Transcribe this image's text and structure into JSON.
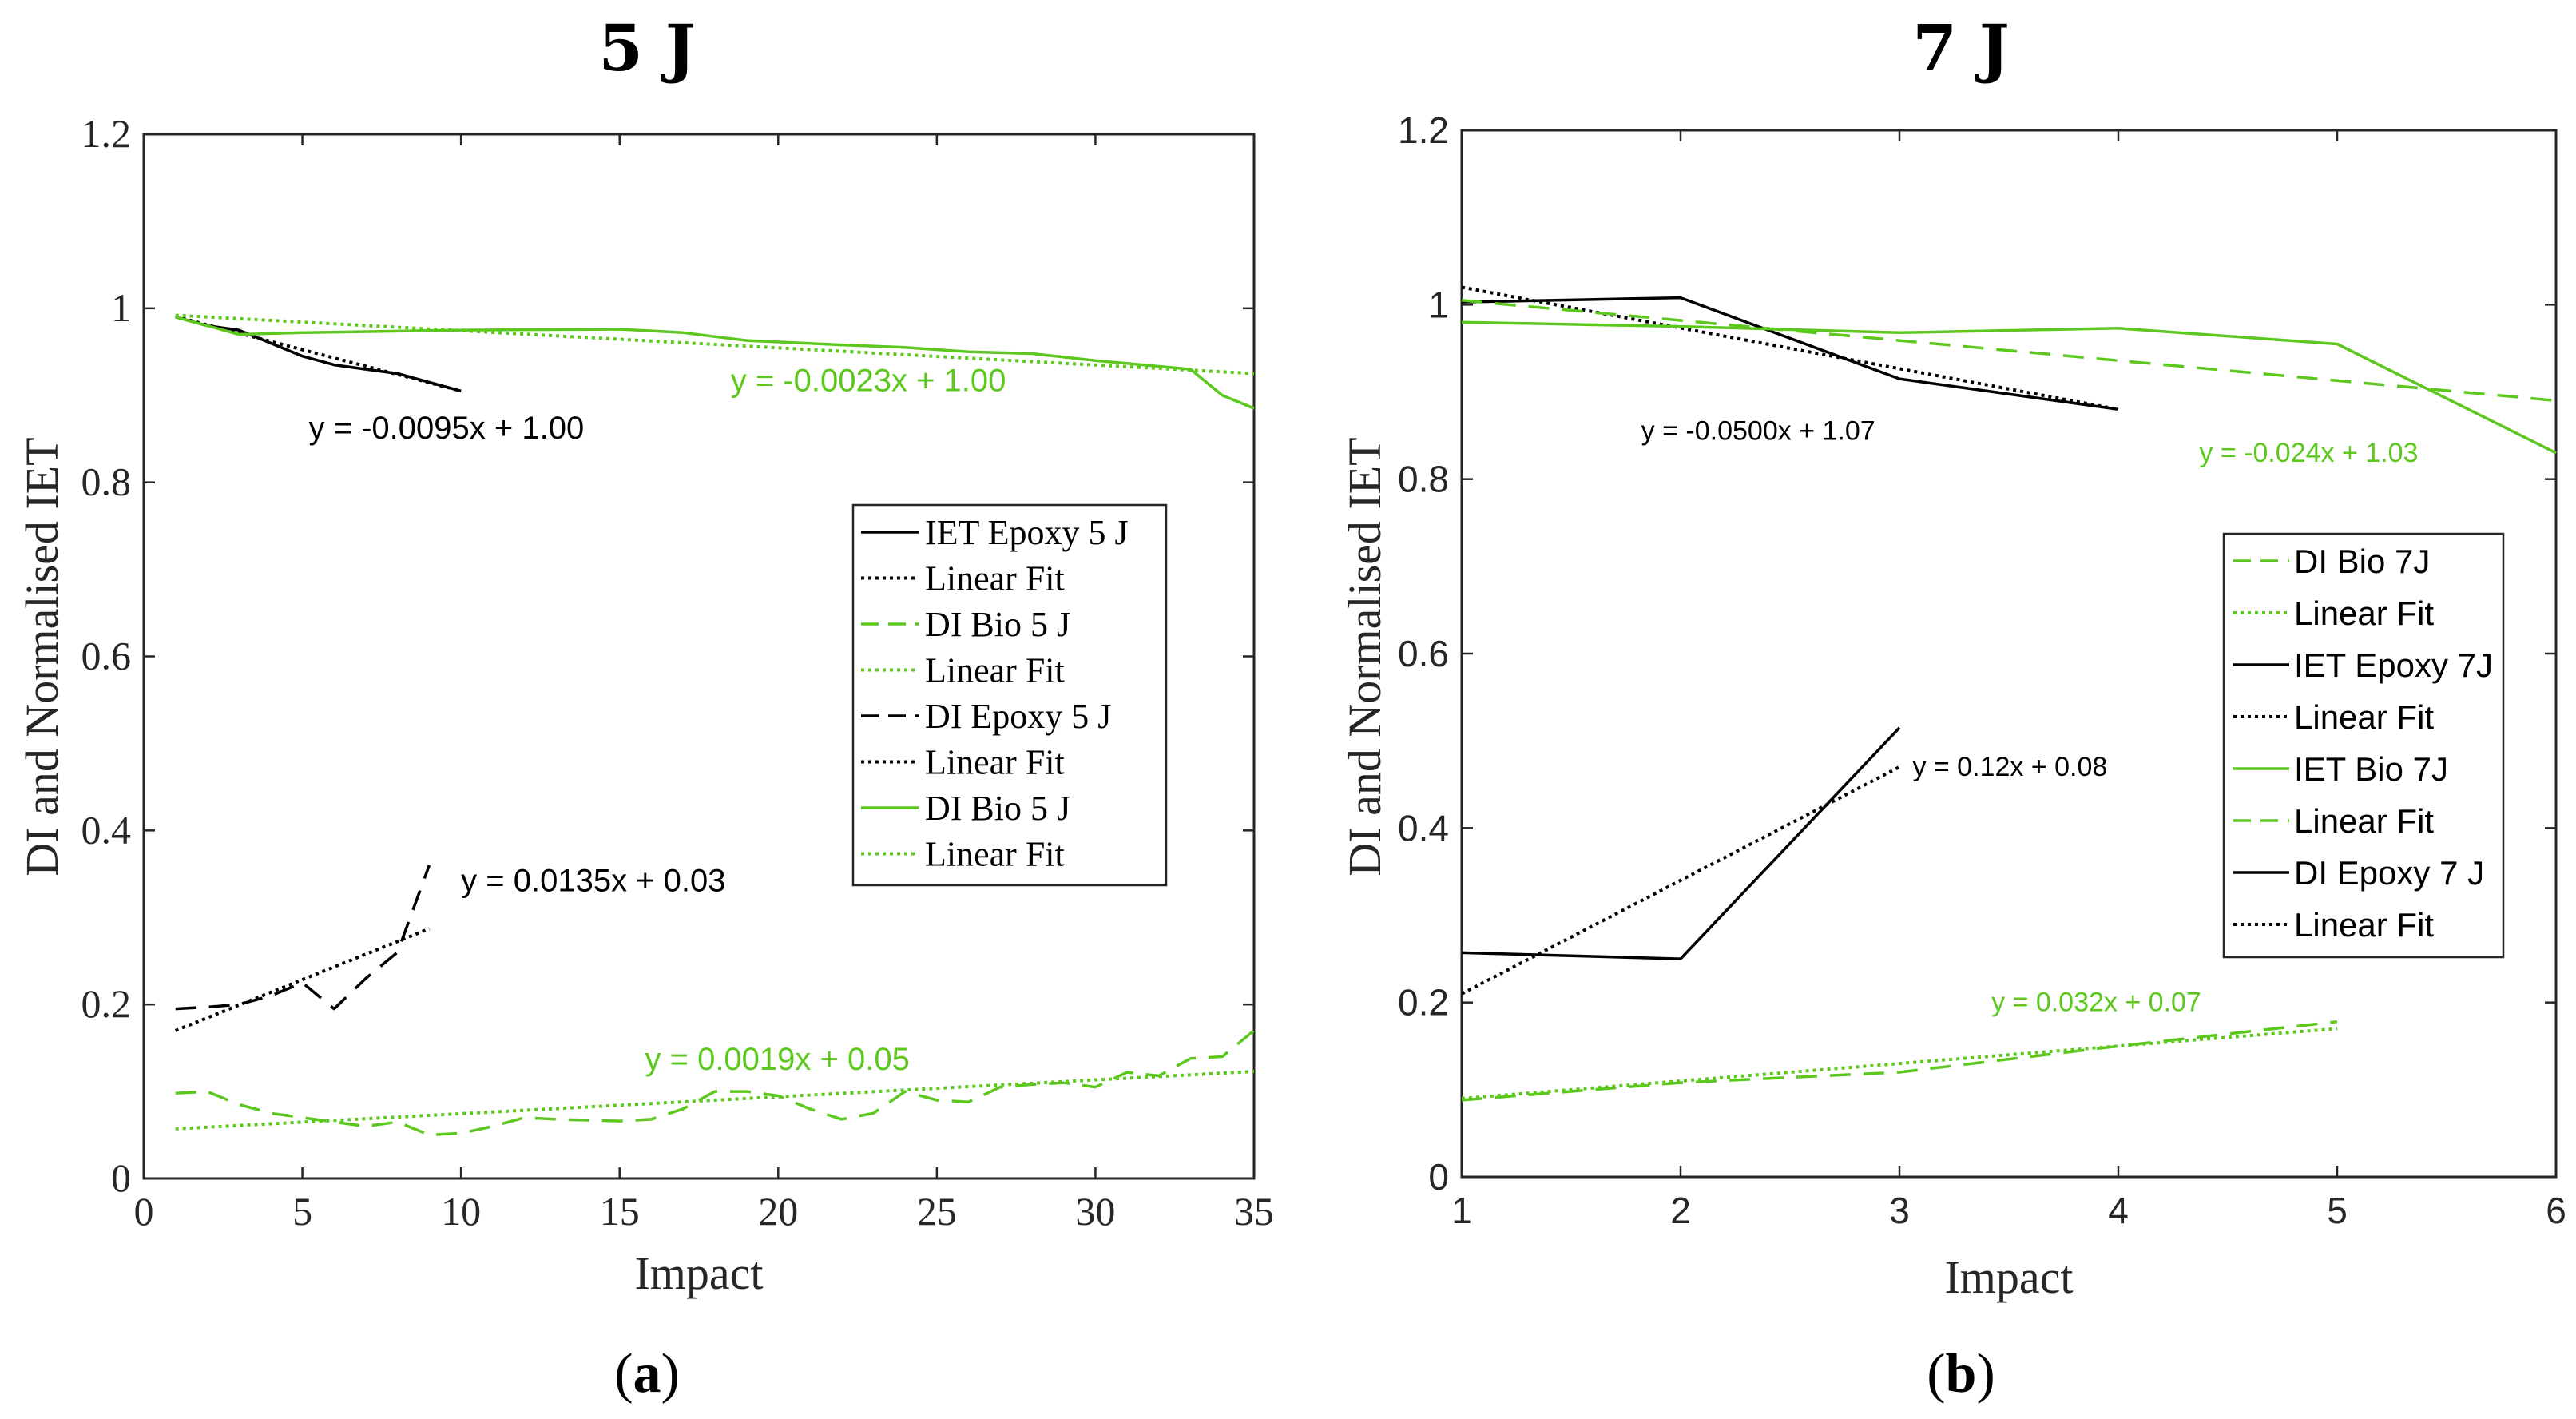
{
  "colors": {
    "black": "#000000",
    "green": "#5cc81e",
    "axis": "#262626"
  },
  "chart_data": [
    {
      "type": "line",
      "title": "5 J",
      "panel_label": [
        "(",
        "a",
        ")"
      ],
      "xlabel": "Impact",
      "ylabel": "DI and Normalised IET",
      "xlim": [
        0,
        35
      ],
      "ylim": [
        0,
        1.2
      ],
      "xticks": [
        0,
        5,
        10,
        15,
        20,
        25,
        30,
        35
      ],
      "yticks": [
        0,
        0.2,
        0.4,
        0.6,
        0.8,
        1,
        1.2
      ],
      "ytick_labels": [
        "0",
        "0.2",
        "0.4",
        "0.6",
        "0.8",
        "1",
        "1.2"
      ],
      "legend": {
        "location": "center-right",
        "entries": [
          {
            "label": "IET Epoxy 5 J",
            "color": "#000000",
            "style": "solid"
          },
          {
            "label": "Linear Fit",
            "color": "#000000",
            "style": "dotted"
          },
          {
            "label": "DI Bio 5 J",
            "color": "#5cc81e",
            "style": "dashed"
          },
          {
            "label": "Linear Fit",
            "color": "#5cc81e",
            "style": "dotted"
          },
          {
            "label": "DI Epoxy 5 J",
            "color": "#000000",
            "style": "dashed"
          },
          {
            "label": "Linear Fit",
            "color": "#000000",
            "style": "dotted"
          },
          {
            "label": "DI Bio 5 J",
            "color": "#5cc81e",
            "style": "solid"
          },
          {
            "label": "Linear Fit",
            "color": "#5cc81e",
            "style": "dotted"
          }
        ]
      },
      "series": [
        {
          "name": "IET Epoxy 5 J",
          "color": "#000000",
          "style": "solid",
          "x": [
            1,
            2,
            3,
            4,
            5,
            6,
            7,
            8,
            9,
            10
          ],
          "y": [
            0.99,
            0.98,
            0.975,
            0.96,
            0.945,
            0.935,
            0.93,
            0.925,
            0.915,
            0.905
          ]
        },
        {
          "name": "Linear Fit (IET Epoxy 5 J)",
          "color": "#000000",
          "style": "dotted",
          "x": [
            1,
            10
          ],
          "y": [
            0.9905,
            0.905
          ]
        },
        {
          "name": "DI Bio 5 J (dashed)",
          "color": "#5cc81e",
          "style": "dashed",
          "x": [
            1,
            2,
            3,
            4,
            5,
            6,
            7,
            8,
            9,
            10,
            11,
            12,
            13,
            14,
            15,
            16,
            17,
            18,
            19,
            20,
            21,
            22,
            23,
            24,
            25,
            26,
            27,
            28,
            29,
            30,
            31,
            32,
            33,
            34,
            35
          ],
          "y": [
            0.098,
            0.1,
            0.085,
            0.075,
            0.07,
            0.065,
            0.06,
            0.065,
            0.05,
            0.052,
            0.06,
            0.07,
            0.068,
            0.067,
            0.066,
            0.068,
            0.08,
            0.1,
            0.1,
            0.095,
            0.08,
            0.068,
            0.075,
            0.1,
            0.09,
            0.088,
            0.105,
            0.108,
            0.11,
            0.105,
            0.122,
            0.118,
            0.138,
            0.14,
            0.17
          ]
        },
        {
          "name": "Linear Fit (DI Bio 5 J)",
          "color": "#5cc81e",
          "style": "dotted",
          "x": [
            1,
            35
          ],
          "y": [
            0.057,
            0.123
          ]
        },
        {
          "name": "DI Epoxy 5 J",
          "color": "#000000",
          "style": "dashed",
          "x": [
            1,
            2,
            3,
            4,
            5,
            6,
            7,
            8,
            9
          ],
          "y": [
            0.195,
            0.197,
            0.2,
            0.21,
            0.225,
            0.195,
            0.23,
            0.26,
            0.36
          ]
        },
        {
          "name": "Linear Fit (DI Epoxy 5 J)",
          "color": "#000000",
          "style": "dotted",
          "x": [
            1,
            9
          ],
          "y": [
            0.17,
            0.287
          ]
        },
        {
          "name": "DI Bio 5 J (solid)",
          "color": "#5cc81e",
          "style": "solid",
          "x": [
            1,
            2,
            3,
            5,
            10,
            15,
            17,
            19,
            22,
            24,
            26,
            28,
            30,
            33,
            34,
            35
          ],
          "y": [
            0.99,
            0.98,
            0.97,
            0.972,
            0.975,
            0.976,
            0.972,
            0.963,
            0.958,
            0.955,
            0.95,
            0.948,
            0.94,
            0.93,
            0.9,
            0.885
          ]
        },
        {
          "name": "Linear Fit (DI Bio 5 J solid)",
          "color": "#5cc81e",
          "style": "dotted",
          "x": [
            1,
            35
          ],
          "y": [
            0.992,
            0.925
          ]
        }
      ],
      "annotations": [
        {
          "text": "y = -0.0095x + 1.00",
          "x": 5.2,
          "y": 0.85,
          "color": "#000000"
        },
        {
          "text": "y = -0.0023x + 1.00",
          "x": 18.5,
          "y": 0.905,
          "color": "#5cc81e"
        },
        {
          "text": "y = 0.0135x + 0.03",
          "x": 10,
          "y": 0.33,
          "color": "#000000"
        },
        {
          "text": "y = 0.0019x + 0.05",
          "x": 15.8,
          "y": 0.125,
          "color": "#5cc81e"
        }
      ]
    },
    {
      "type": "line",
      "title": "7 J",
      "panel_label": [
        "(",
        "b",
        ")"
      ],
      "xlabel": "Impact",
      "ylabel": "DI and Normalised IET",
      "xlim": [
        1,
        6
      ],
      "ylim": [
        0,
        1.2
      ],
      "xticks": [
        1,
        2,
        3,
        4,
        5,
        6
      ],
      "yticks": [
        0,
        0.2,
        0.4,
        0.6,
        0.8,
        1,
        1.2
      ],
      "ytick_labels": [
        "0",
        "0.2",
        "0.4",
        "0.6",
        "0.8",
        "1",
        "1.2"
      ],
      "legend": {
        "location": "center-right",
        "entries": [
          {
            "label": "DI Bio 7J",
            "color": "#5cc81e",
            "style": "dashed"
          },
          {
            "label": "Linear Fit",
            "color": "#5cc81e",
            "style": "dotted"
          },
          {
            "label": "IET Epoxy 7J",
            "color": "#000000",
            "style": "solid"
          },
          {
            "label": "Linear Fit",
            "color": "#000000",
            "style": "dotted"
          },
          {
            "label": "IET Bio 7J",
            "color": "#5cc81e",
            "style": "solid"
          },
          {
            "label": "Linear Fit",
            "color": "#5cc81e",
            "style": "dashed"
          },
          {
            "label": "DI Epoxy 7 J",
            "color": "#000000",
            "style": "solid"
          },
          {
            "label": "Linear Fit",
            "color": "#000000",
            "style": "dotted"
          }
        ]
      },
      "series": [
        {
          "name": "DI Bio 7J",
          "color": "#5cc81e",
          "style": "dashed",
          "x": [
            1,
            2,
            3,
            4,
            5
          ],
          "y": [
            0.088,
            0.108,
            0.12,
            0.15,
            0.178
          ]
        },
        {
          "name": "Linear Fit (DI Bio 7J)",
          "color": "#5cc81e",
          "style": "dotted",
          "x": [
            1,
            5
          ],
          "y": [
            0.09,
            0.17
          ]
        },
        {
          "name": "IET Epoxy 7J",
          "color": "#000000",
          "style": "solid",
          "x": [
            1,
            2,
            3,
            4
          ],
          "y": [
            1.003,
            1.008,
            0.915,
            0.88
          ]
        },
        {
          "name": "Linear Fit (IET Epoxy 7J)",
          "color": "#000000",
          "style": "dotted",
          "x": [
            1,
            4
          ],
          "y": [
            1.02,
            0.88
          ]
        },
        {
          "name": "IET Bio 7J",
          "color": "#5cc81e",
          "style": "solid",
          "x": [
            1,
            2,
            3,
            4,
            5,
            6
          ],
          "y": [
            0.98,
            0.975,
            0.968,
            0.973,
            0.955,
            0.83
          ]
        },
        {
          "name": "Linear Fit (IET Bio 7J)",
          "color": "#5cc81e",
          "style": "dashed",
          "x": [
            1,
            6
          ],
          "y": [
            1.005,
            0.89
          ]
        },
        {
          "name": "DI Epoxy 7 J",
          "color": "#000000",
          "style": "solid",
          "x": [
            1,
            2,
            3
          ],
          "y": [
            0.257,
            0.25,
            0.515
          ]
        },
        {
          "name": "Linear Fit (DI Epoxy 7 J)",
          "color": "#000000",
          "style": "dotted",
          "x": [
            1,
            3
          ],
          "y": [
            0.21,
            0.47
          ]
        }
      ],
      "annotations": [
        {
          "text": "y = -0.0500x + 1.07",
          "x": 1.82,
          "y": 0.845,
          "color": "#000000"
        },
        {
          "text": "y = -0.024x + 1.03",
          "x": 4.37,
          "y": 0.82,
          "color": "#5cc81e"
        },
        {
          "text": "y = 0.12x + 0.08",
          "x": 3.06,
          "y": 0.46,
          "color": "#000000"
        },
        {
          "text": "y = 0.032x + 0.07",
          "x": 3.42,
          "y": 0.19,
          "color": "#5cc81e"
        }
      ]
    }
  ]
}
